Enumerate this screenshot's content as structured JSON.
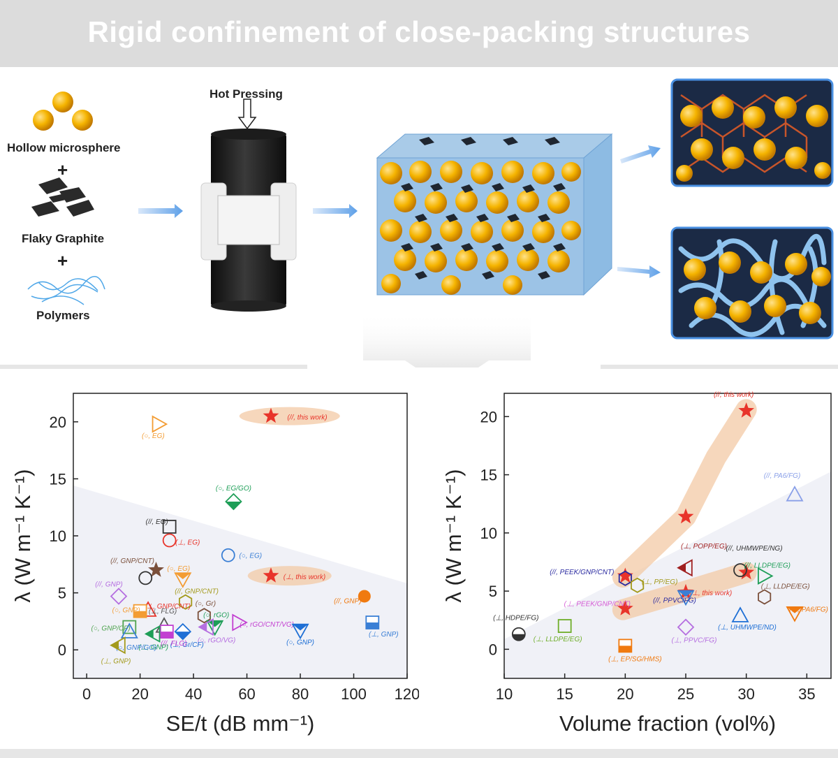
{
  "header": {
    "title": "Rigid confinement of close-packing structures"
  },
  "process": {
    "hot_pressing": "Hot Pressing",
    "ingredients": [
      "Hollow microsphere",
      "Flaky Graphite",
      "Polymers"
    ],
    "plus": "+"
  },
  "colors": {
    "this_work": "#e8342a",
    "highlight": "#f3c9a6",
    "sphere": "#f2a900",
    "banner": "#dcdcdc"
  },
  "chart_data": [
    {
      "type": "scatter",
      "xlabel": "SE/t (dB mm⁻¹)",
      "ylabel": "λ (W m⁻¹ K⁻¹)",
      "xlim": [
        -5,
        120
      ],
      "ylim": [
        -2.5,
        22.5
      ],
      "xticks": [
        0,
        20,
        40,
        60,
        80,
        100,
        120
      ],
      "yticks": [
        0,
        5,
        10,
        15,
        20
      ],
      "points": [
        {
          "x": 69,
          "y": 20.5,
          "label": "(//, this work)",
          "color": "#e8342a",
          "shape": "star",
          "highlight": true
        },
        {
          "x": 69,
          "y": 6.5,
          "label": "(⊥, this work)",
          "color": "#e8342a",
          "shape": "star",
          "highlight": true
        },
        {
          "x": 27,
          "y": 19.8,
          "label": "(○, EG)",
          "color": "#f39c33",
          "shape": "tri-right"
        },
        {
          "x": 55,
          "y": 13,
          "label": "(○, EG/GO)",
          "color": "#1e9e57",
          "shape": "diamond-half"
        },
        {
          "x": 31,
          "y": 10.8,
          "label": "(//, EG)",
          "color": "#333333",
          "shape": "square"
        },
        {
          "x": 31,
          "y": 9.6,
          "label": "(⊥, EG)",
          "color": "#e8342a",
          "shape": "circle"
        },
        {
          "x": 53,
          "y": 8.3,
          "label": "(○, EG)",
          "color": "#3a7fd5",
          "shape": "circle"
        },
        {
          "x": 26,
          "y": 7,
          "label": "(//, GNP/CNT)",
          "color": "#7a4f3a",
          "shape": "star"
        },
        {
          "x": 22,
          "y": 6.3,
          "label": "",
          "color": "#333333",
          "shape": "circle"
        },
        {
          "x": 36,
          "y": 6.2,
          "label": "(○, EG)",
          "color": "#f39c33",
          "shape": "tri-down"
        },
        {
          "x": 12,
          "y": 4.7,
          "label": "(//, GNP)",
          "color": "#b56ee0",
          "shape": "diamond"
        },
        {
          "x": 37,
          "y": 4.2,
          "label": "(//, GNP/CNT)",
          "color": "#a39a1c",
          "shape": "hexagon"
        },
        {
          "x": 23,
          "y": 3.5,
          "label": "(⊥, GNP/CNT)",
          "color": "#e8342a",
          "shape": "triangle"
        },
        {
          "x": 20,
          "y": 3.4,
          "label": "(○, GNP)",
          "color": "#f39c33",
          "shape": "square-half"
        },
        {
          "x": 44,
          "y": 3,
          "label": "(○, Gr)",
          "color": "#7a4f3a",
          "shape": "hexagon"
        },
        {
          "x": 57,
          "y": 2.4,
          "label": "(○, rGO/CNT/VG)",
          "color": "#c23fd1",
          "shape": "tri-right"
        },
        {
          "x": 48,
          "y": 2,
          "label": "(○, rGO)",
          "color": "#1e9e57",
          "shape": "tri-down"
        },
        {
          "x": 45,
          "y": 2,
          "label": "(○, rGO/VG)",
          "color": "#b56ee0",
          "shape": "tri-left"
        },
        {
          "x": 104,
          "y": 4.7,
          "label": "(//, GNP)",
          "color": "#f07a10",
          "shape": "circle-filled"
        },
        {
          "x": 107,
          "y": 2.4,
          "label": "(⊥, GNP)",
          "color": "#3a7fd5",
          "shape": "square-half"
        },
        {
          "x": 80,
          "y": 1.7,
          "label": "(○, GNP)",
          "color": "#1e6fd5",
          "shape": "tri-down"
        },
        {
          "x": 36,
          "y": 1.6,
          "label": "(⊥, Gr/CF)",
          "color": "#1e6fd5",
          "shape": "diamond-half"
        },
        {
          "x": 29,
          "y": 2.1,
          "label": "(⊥, FLG)",
          "color": "#555555",
          "shape": "triangle"
        },
        {
          "x": 30,
          "y": 1.6,
          "label": "(//, FLG)",
          "color": "#c23fd1",
          "shape": "square-half"
        },
        {
          "x": 25,
          "y": 1.4,
          "label": "(⊥, GNP)",
          "color": "#1e9e57",
          "shape": "tri-left"
        },
        {
          "x": 16,
          "y": 2,
          "label": "",
          "color": "#4fa34f",
          "shape": "square"
        },
        {
          "x": 16,
          "y": 1.6,
          "label": "(○, GNP/GO)",
          "color": "#3a7fd5",
          "shape": "triangle"
        },
        {
          "x": 12,
          "y": 0.4,
          "label": "(⊥, GNP)",
          "color": "#a39a1c",
          "shape": "tri-left"
        },
        {
          "x": 9,
          "y": 1.2,
          "label": "(○, GNP/CF)",
          "color": "#4fa34f",
          "shape": "none"
        }
      ]
    },
    {
      "type": "scatter",
      "xlabel": "Volume fraction (vol%)",
      "ylabel": "λ (W m⁻¹ K⁻¹)",
      "xlim": [
        10,
        37
      ],
      "ylim": [
        -2.5,
        22
      ],
      "xticks": [
        10,
        15,
        20,
        25,
        30,
        35
      ],
      "yticks": [
        0,
        5,
        10,
        15,
        20
      ],
      "points": [
        {
          "x": 30,
          "y": 20.5,
          "label": "(//, this work)",
          "color": "#e8342a",
          "shape": "star",
          "highlight": true
        },
        {
          "x": 25,
          "y": 11.4,
          "label": "",
          "color": "#e8342a",
          "shape": "star",
          "highlight": true
        },
        {
          "x": 20,
          "y": 6.3,
          "label": "",
          "color": "#e8342a",
          "shape": "star",
          "highlight": true
        },
        {
          "x": 30,
          "y": 6.6,
          "label": "",
          "color": "#e8342a",
          "shape": "star",
          "highlight": true
        },
        {
          "x": 25,
          "y": 4.9,
          "label": "(⊥, this work)",
          "color": "#e8342a",
          "shape": "star",
          "highlight": true
        },
        {
          "x": 20,
          "y": 3.5,
          "label": "",
          "color": "#e8342a",
          "shape": "star",
          "highlight": true
        },
        {
          "x": 34,
          "y": 13.3,
          "label": "(//, PA6/FG)",
          "color": "#8aa0e8",
          "shape": "triangle"
        },
        {
          "x": 25,
          "y": 7,
          "label": "(⊥, POPP/EG)",
          "color": "#a01f1f",
          "shape": "tri-left"
        },
        {
          "x": 29.5,
          "y": 6.8,
          "label": "(//, UHMWPE/NG)",
          "color": "#333333",
          "shape": "circle"
        },
        {
          "x": 31.5,
          "y": 6.3,
          "label": "(//, LLDPE/EG)",
          "color": "#1e9e57",
          "shape": "tri-right"
        },
        {
          "x": 20,
          "y": 6.1,
          "label": "(//, PEEK/GNP/CNT)",
          "color": "#2a2aa0",
          "shape": "hexagon"
        },
        {
          "x": 21,
          "y": 5.5,
          "label": "(⊥, PP/EG)",
          "color": "#a39a1c",
          "shape": "hexagon"
        },
        {
          "x": 20,
          "y": 4.8,
          "label": "(⊥, PEEK/GNP/CNT)",
          "color": "#d55ad5",
          "shape": "none"
        },
        {
          "x": 25,
          "y": 4.5,
          "label": "",
          "color": "#3a7fd5",
          "shape": "tri-down"
        },
        {
          "x": 31.5,
          "y": 4.5,
          "label": "(⊥, LLDPE/EG)",
          "color": "#7a4f3a",
          "shape": "hexagon"
        },
        {
          "x": 34,
          "y": 3.1,
          "label": "(⊥, PA6/FG)",
          "color": "#f07a10",
          "shape": "tri-down"
        },
        {
          "x": 29.5,
          "y": 2.9,
          "label": "(⊥, UHMWPE/ND)",
          "color": "#1e6fd5",
          "shape": "triangle"
        },
        {
          "x": 11.2,
          "y": 1.3,
          "label": "(⊥, HDPE/FG)",
          "color": "#333333",
          "shape": "circle-half"
        },
        {
          "x": 15,
          "y": 2,
          "label": "(⊥, LLDPE/EG)",
          "color": "#6fae2a",
          "shape": "square"
        },
        {
          "x": 25,
          "y": 1.9,
          "label": "(⊥, PPVC/FG)",
          "color": "#b56ee0",
          "shape": "diamond"
        },
        {
          "x": 25,
          "y": 3.4,
          "label": "(//, PPVC/FG)",
          "color": "#2a2aa0",
          "shape": "none"
        },
        {
          "x": 20,
          "y": 0.3,
          "label": "(⊥, EP/SG/HMS)",
          "color": "#f07a10",
          "shape": "square-half"
        }
      ]
    }
  ]
}
